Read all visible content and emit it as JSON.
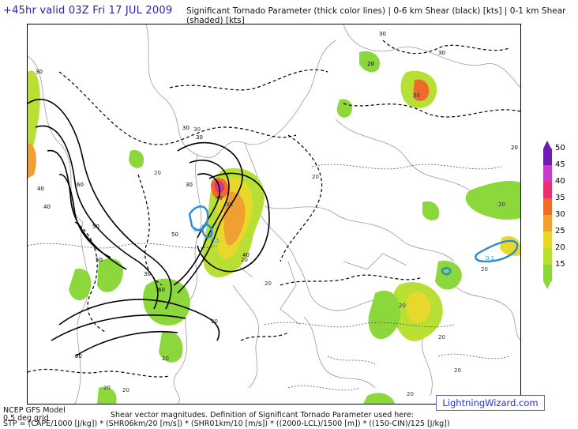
{
  "header": {
    "valid_time": "+45hr valid 03Z Fri 17 JUL 2009",
    "description": "Significant Tornado Parameter (thick color lines) | 0-6 km Shear (black) [kts] | 0-1 km Shear (shaded) [kts]"
  },
  "legend": {
    "labels": [
      "50",
      "45",
      "40",
      "35",
      "30",
      "25",
      "20",
      "15"
    ],
    "colors": [
      "#6a1fb0",
      "#c83cc8",
      "#e8306e",
      "#f06a28",
      "#f0a030",
      "#e8d82c",
      "#b8e034",
      "#8cd83c"
    ]
  },
  "map": {
    "shear_0_6_labels": [
      "30",
      "30",
      "40",
      "50",
      "50",
      "60",
      "60",
      "40",
      "30",
      "30",
      "20",
      "20",
      "30",
      "30",
      "40",
      "50",
      "30",
      "30"
    ],
    "shear_0_1_labels": [
      "20",
      "20",
      "20",
      "20",
      "20",
      "20",
      "30",
      "30",
      "20",
      "20",
      "20",
      "20",
      "20",
      "20",
      "20",
      "20",
      "40",
      "30"
    ],
    "stp_labels": [
      "0.1",
      "0.1",
      "0.1"
    ]
  },
  "footer": {
    "model_name": "NCEP GFS Model",
    "model_res": "0.5 deg grid",
    "note": "Shear vector magnitudes. Definition of Significant Tornado Parameter used here:",
    "formula": "STP = (CAPE/1000 [J/kg]) * (SHR06km/20 [m/s]) * (SHR01km/10 [m/s]) * ((2000-LCL)/1500 [m]) * ((150-CIN)/125 [J/kg])",
    "brand": "LightningWizard.com"
  }
}
